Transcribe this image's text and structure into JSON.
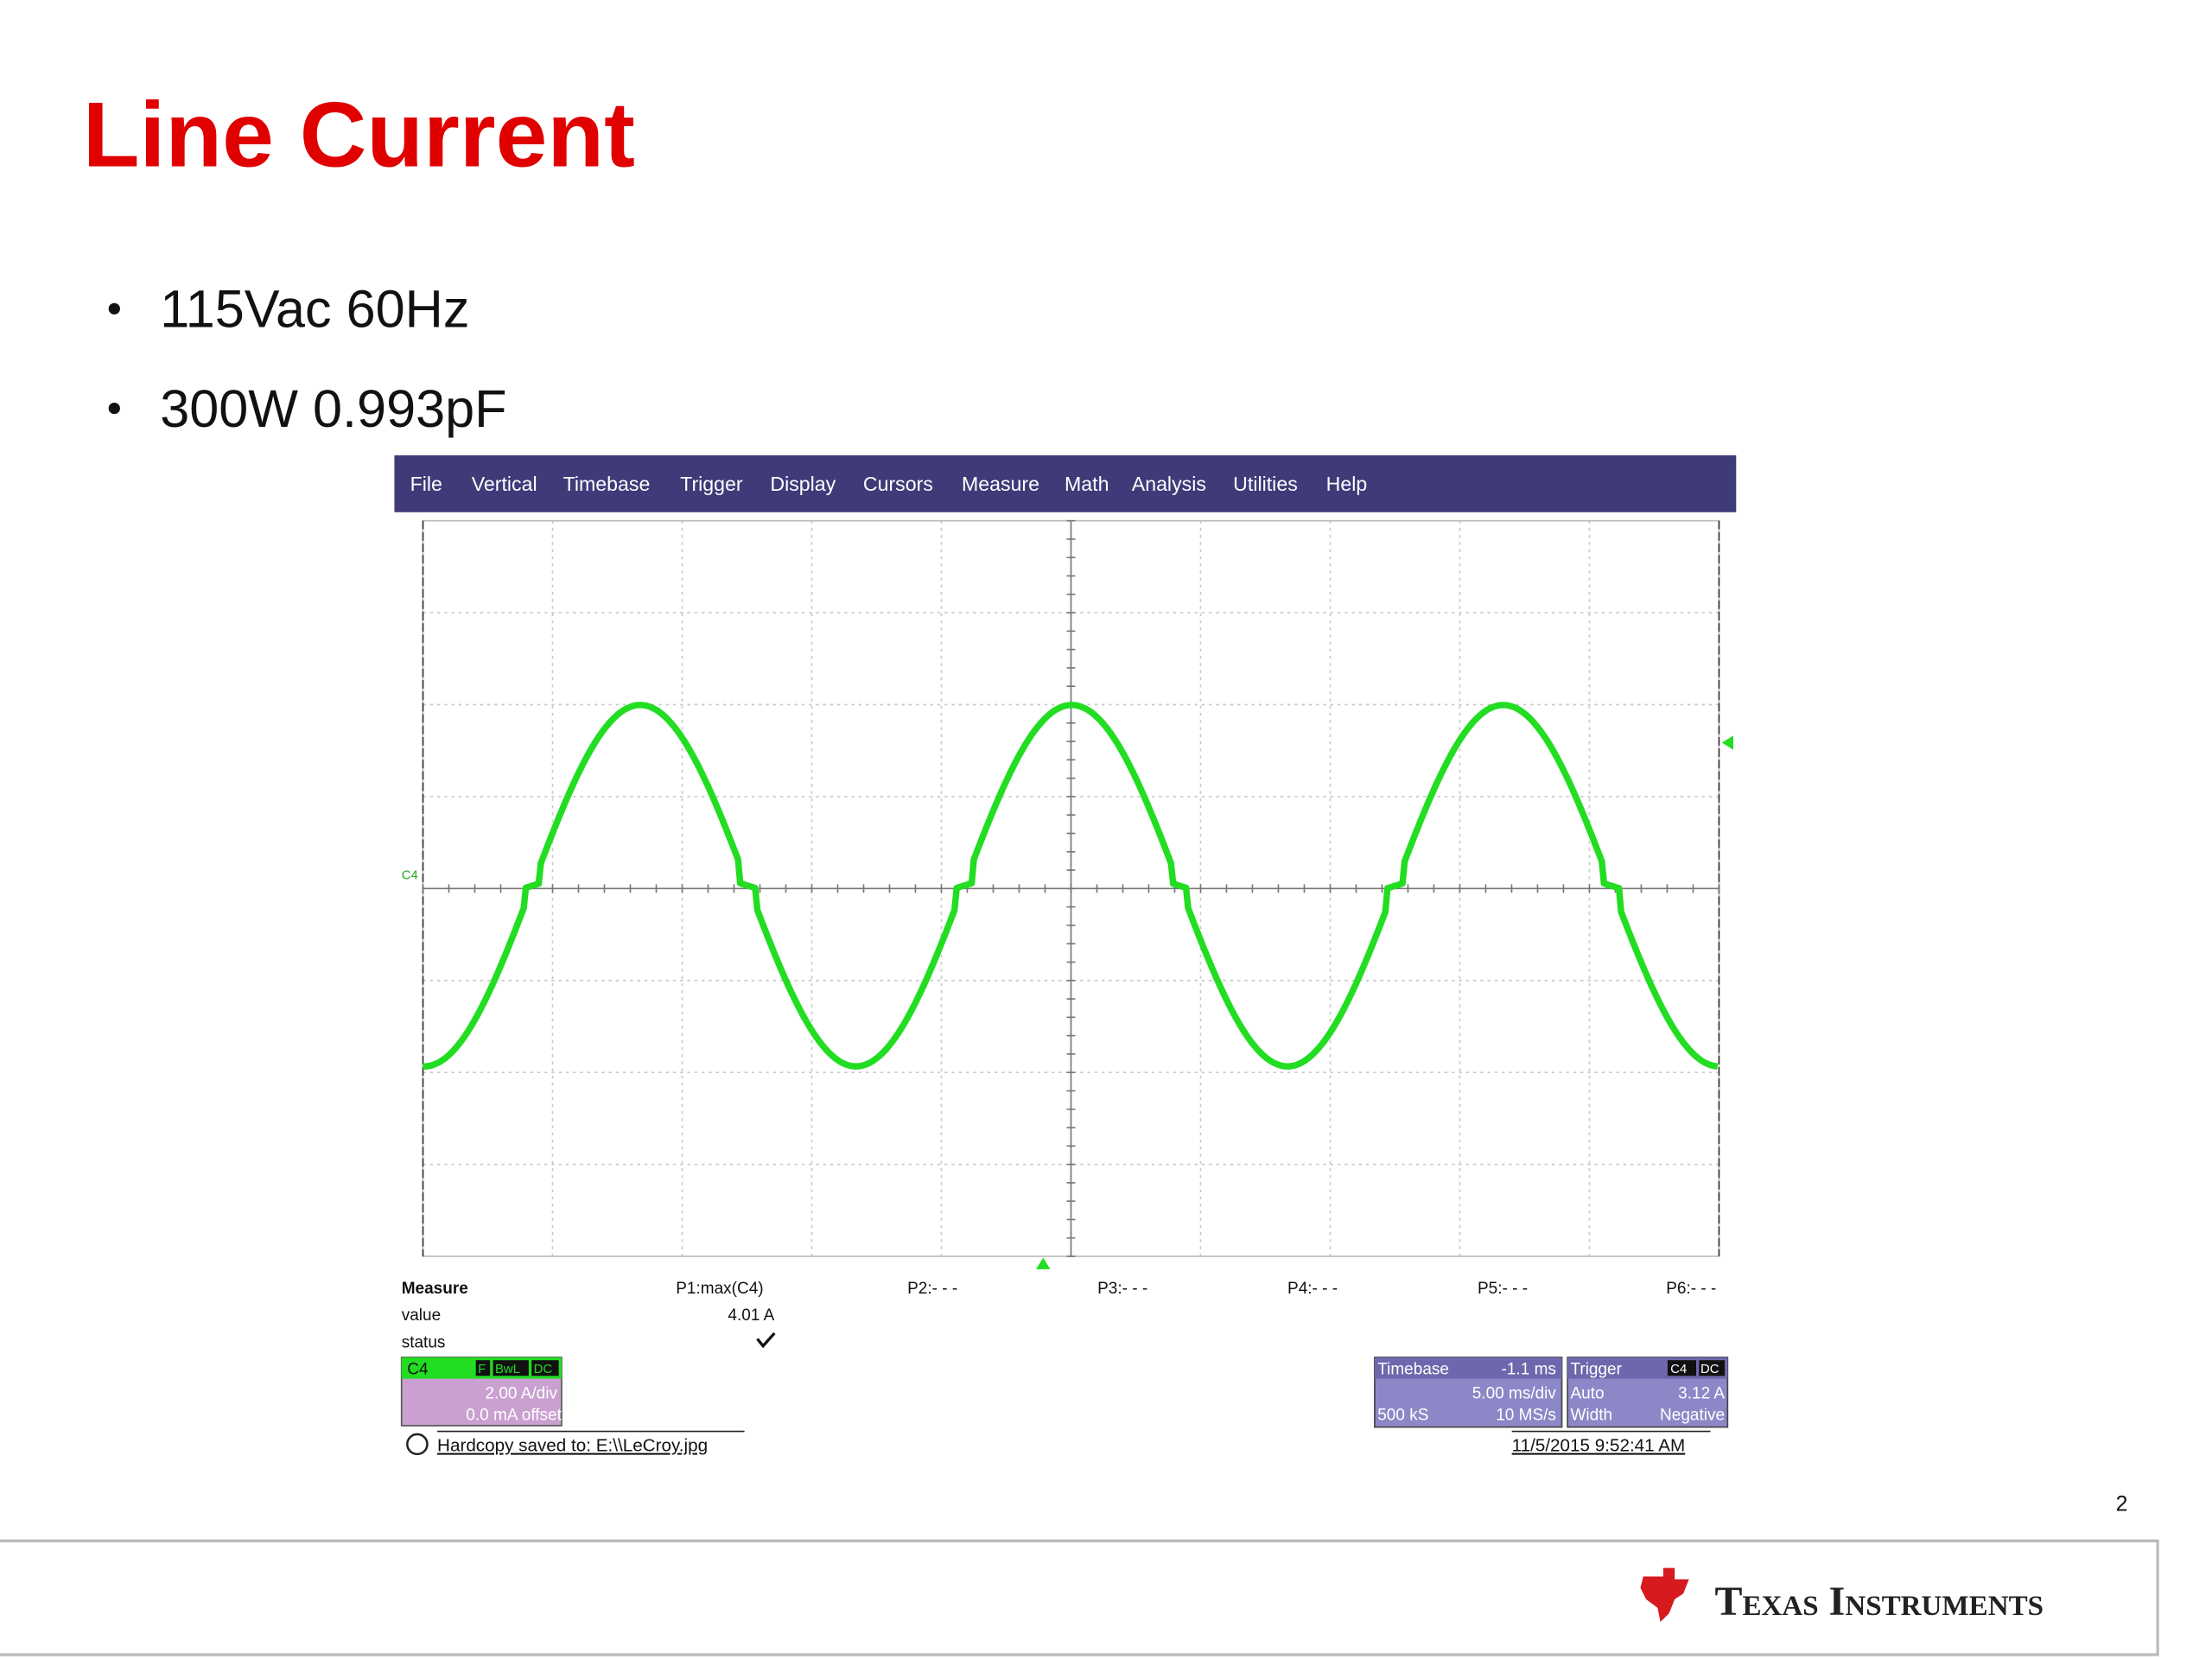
{
  "title": "Line Current",
  "bullets": [
    "115Vac 60Hz",
    "300W 0.993pF"
  ],
  "scope": {
    "menu": [
      "File",
      "Vertical",
      "Timebase",
      "Trigger",
      "Display",
      "Cursors",
      "Measure",
      "Math",
      "Analysis",
      "Utilities",
      "Help"
    ],
    "trace_label": "C4",
    "measure": {
      "heading": "Measure",
      "row_labels": [
        "value",
        "status"
      ],
      "params": [
        "P1:max(C4)",
        "P2:- - -",
        "P3:- - -",
        "P4:- - -",
        "P5:- - -",
        "P6:- - -"
      ],
      "p1_value": "4.01 A"
    },
    "channel": {
      "name": "C4",
      "flags": [
        "F",
        "BwL",
        "DC"
      ],
      "scale": "2.00 A/div",
      "offset": "0.0 mA offset"
    },
    "timebase": {
      "title": "Timebase",
      "delay": "-1.1 ms",
      "scale": "5.00 ms/div",
      "samples": "500 kS",
      "rate": "10 MS/s"
    },
    "trigger": {
      "title": "Trigger",
      "flags": [
        "C4",
        "DC"
      ],
      "mode": "Auto",
      "level": "3.12 A",
      "type": "Width",
      "slope": "Negative"
    },
    "hardcopy": "Hardcopy saved to: E:\\\\LeCroy.jpg",
    "timestamp": "11/5/2015 9:52:41 AM"
  },
  "page_number": "2",
  "logo": "Texas Instruments"
}
